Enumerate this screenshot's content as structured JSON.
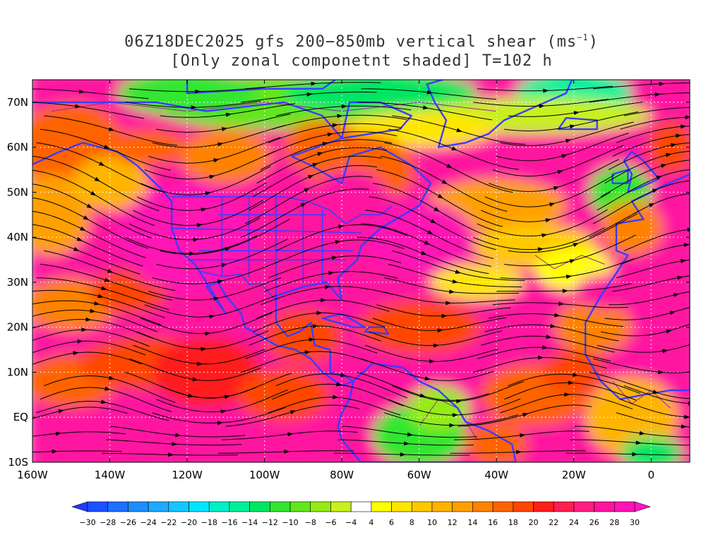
{
  "title": {
    "line1_prefix": "06Z18DEC2025 gfs 200−850mb vertical shear (ms",
    "line1_sup": "−1",
    "line1_suffix": ")",
    "line2": "[Only zonal componetnt shaded] T=102 h"
  },
  "axes": {
    "lat_labels": [
      "70N",
      "60N",
      "50N",
      "40N",
      "30N",
      "20N",
      "10N",
      "EQ",
      "10S"
    ],
    "lat_values": [
      70,
      60,
      50,
      40,
      30,
      20,
      10,
      0,
      -10
    ],
    "lon_labels": [
      "160W",
      "140W",
      "120W",
      "100W",
      "80W",
      "60W",
      "40W",
      "20W",
      "0"
    ],
    "lon_values": [
      -160,
      -140,
      -120,
      -100,
      -80,
      -60,
      -40,
      -20,
      0
    ],
    "lon_range": [
      -160,
      10
    ],
    "lat_range": [
      -10,
      75
    ]
  },
  "colorbar": {
    "labels": [
      "−30",
      "−28",
      "−26",
      "−24",
      "−22",
      "−20",
      "−18",
      "−16",
      "−14",
      "−12",
      "−10",
      "−8",
      "−6",
      "−4",
      "4",
      "6",
      "8",
      "10",
      "12",
      "14",
      "16",
      "18",
      "20",
      "22",
      "24",
      "26",
      "28",
      "30"
    ],
    "colors": [
      "#1e3cff",
      "#1e50ff",
      "#1e6eff",
      "#1e8cff",
      "#1eaaff",
      "#14c8ff",
      "#00e6ff",
      "#00f0c8",
      "#00f09b",
      "#00e664",
      "#32e632",
      "#64e61e",
      "#96eb14",
      "#c8f01e",
      "#ffffff",
      "#ffff00",
      "#ffe600",
      "#ffc800",
      "#ffb400",
      "#ffa000",
      "#ff8200",
      "#ff6400",
      "#ff4600",
      "#ff1e1e",
      "#ff1e50",
      "#ff1e82",
      "#ff14a0",
      "#ff14b4",
      "#ff14c8"
    ]
  },
  "colors": {
    "coastline": "#3c3cff",
    "streamline": "#000000",
    "grid": "#ffffff",
    "contour": "#a020a0"
  }
}
